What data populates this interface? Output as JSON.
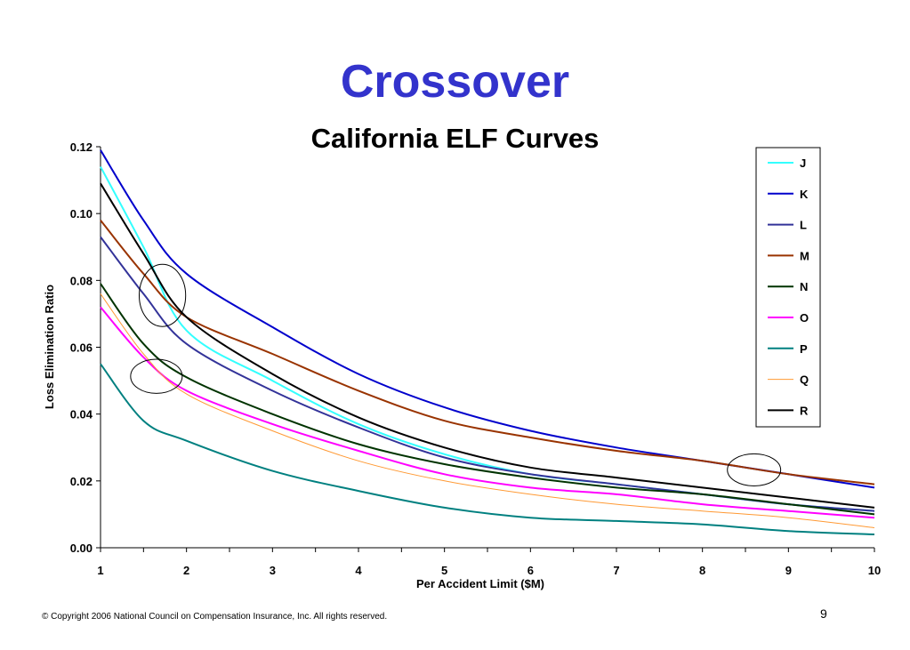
{
  "slide": {
    "title": "Crossover",
    "copyright": "© Copyright 2006 National Council on Compensation Insurance, Inc.  All rights reserved.",
    "page_number": "9"
  },
  "chart_data": {
    "type": "line",
    "title": "California ELF Curves",
    "xlabel": "Per Accident Limit ($M)",
    "ylabel": "Loss Elimination Ratio",
    "xlim": [
      1,
      10
    ],
    "ylim": [
      0,
      0.12
    ],
    "xticks": [
      "1",
      "2",
      "3",
      "4",
      "5",
      "6",
      "7",
      "8",
      "9",
      "10"
    ],
    "yticks": [
      "0.00",
      "0.02",
      "0.04",
      "0.06",
      "0.08",
      "0.10",
      "0.12"
    ],
    "legend_position": "right",
    "x": [
      1,
      1.5,
      2,
      3,
      4,
      5,
      6,
      7,
      8,
      9,
      10
    ],
    "series": [
      {
        "name": "J",
        "color": "#33ffff",
        "width": 2,
        "values": [
          0.114,
          0.09,
          0.065,
          0.05,
          0.037,
          0.028,
          0.022,
          0.019,
          0.016,
          0.013,
          0.011
        ]
      },
      {
        "name": "K",
        "color": "#0000cc",
        "width": 2,
        "values": [
          0.119,
          0.098,
          0.082,
          0.066,
          0.052,
          0.042,
          0.035,
          0.03,
          0.026,
          0.022,
          0.018
        ]
      },
      {
        "name": "L",
        "color": "#333399",
        "width": 2,
        "values": [
          0.093,
          0.076,
          0.061,
          0.047,
          0.036,
          0.027,
          0.022,
          0.019,
          0.016,
          0.013,
          0.011
        ]
      },
      {
        "name": "M",
        "color": "#993300",
        "width": 2,
        "values": [
          0.098,
          0.082,
          0.069,
          0.058,
          0.047,
          0.038,
          0.033,
          0.029,
          0.026,
          0.022,
          0.019
        ]
      },
      {
        "name": "N",
        "color": "#003300",
        "width": 2,
        "values": [
          0.079,
          0.061,
          0.051,
          0.04,
          0.031,
          0.025,
          0.021,
          0.018,
          0.016,
          0.013,
          0.01
        ]
      },
      {
        "name": "O",
        "color": "#ff00ff",
        "width": 2,
        "values": [
          0.072,
          0.057,
          0.047,
          0.037,
          0.029,
          0.022,
          0.018,
          0.016,
          0.013,
          0.011,
          0.009
        ]
      },
      {
        "name": "P",
        "color": "#008080",
        "width": 2,
        "values": [
          0.055,
          0.038,
          0.032,
          0.023,
          0.017,
          0.012,
          0.009,
          0.008,
          0.007,
          0.005,
          0.004
        ]
      },
      {
        "name": "Q",
        "color": "#ff9933",
        "width": 1,
        "values": [
          0.076,
          0.058,
          0.046,
          0.035,
          0.026,
          0.02,
          0.016,
          0.013,
          0.011,
          0.009,
          0.006
        ]
      },
      {
        "name": "R",
        "color": "#000000",
        "width": 2,
        "values": [
          0.109,
          0.088,
          0.069,
          0.052,
          0.039,
          0.03,
          0.024,
          0.021,
          0.018,
          0.015,
          0.012
        ]
      }
    ],
    "annotations": [
      {
        "type": "ellipse",
        "cx": 1.72,
        "cy": 0.0755,
        "rx": 0.27,
        "ry": 0.0093
      },
      {
        "type": "ellipse",
        "cx": 1.65,
        "cy": 0.0513,
        "rx": 0.3,
        "ry": 0.0051
      },
      {
        "type": "ellipse",
        "cx": 8.6,
        "cy": 0.0233,
        "rx": 0.31,
        "ry": 0.0048
      }
    ]
  }
}
